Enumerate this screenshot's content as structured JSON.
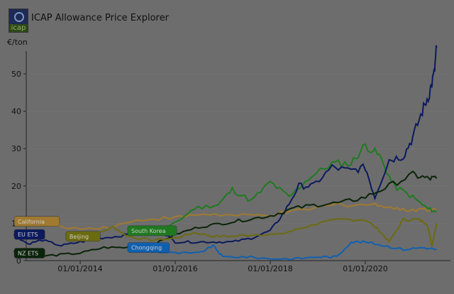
{
  "header": {
    "title": "ICAP Allowance Price Explorer",
    "logo_text": "icap"
  },
  "chart_data": {
    "type": "line",
    "title": "ICAP Allowance Price Explorer",
    "ylabel": "€/ton",
    "xlabel": "",
    "ylim": [
      0,
      57
    ],
    "xlim": [
      2012.6,
      2021.5
    ],
    "yticks": [
      "0",
      "10",
      "20",
      "30",
      "40",
      "50"
    ],
    "xticks": [
      {
        "t": 2014,
        "label": "01/01/2014"
      },
      {
        "t": 2016,
        "label": "01/01/2016"
      },
      {
        "t": 2018,
        "label": "01/01/2018"
      },
      {
        "t": 2020,
        "label": "01/01/2020"
      }
    ],
    "series": [
      {
        "name": "California",
        "color": "#a07a30",
        "x": [
          2012.6,
          2013.3,
          2014,
          2014.6,
          2015.3,
          2016,
          2016.6,
          2017.3,
          2018,
          2018.7,
          2019.4,
          2020,
          2020.4,
          2020.8,
          2021.2,
          2021.5
        ],
        "y": [
          11,
          9.5,
          8.5,
          9,
          11,
          11.5,
          12.5,
          12,
          12.2,
          13.5,
          15,
          15,
          14.8,
          13.5,
          13.8,
          13.5
        ]
      },
      {
        "name": "South Korea",
        "color": "#1f7a1f",
        "x": [
          2015.2,
          2015.6,
          2016,
          2016.4,
          2016.9,
          2017.2,
          2017.6,
          2018,
          2018.4,
          2018.8,
          2019.3,
          2019.7,
          2020,
          2020.3,
          2020.6,
          2021,
          2021.3,
          2021.5
        ],
        "y": [
          8,
          7.5,
          10,
          14,
          15,
          19,
          16,
          21,
          17,
          22,
          26,
          26,
          31,
          28,
          20,
          17,
          14,
          13
        ]
      },
      {
        "name": "EU ETS",
        "color": "#0c1a5e",
        "x": [
          2012.6,
          2012.9,
          2013.2,
          2013.6,
          2014,
          2014.4,
          2014.8,
          2015.2,
          2015.7,
          2016,
          2016.4,
          2016.8,
          2017.2,
          2017.6,
          2018,
          2018.3,
          2018.6,
          2018.9,
          2019.3,
          2019.7,
          2020,
          2020.2,
          2020.5,
          2020.8,
          2021,
          2021.2,
          2021.35,
          2021.45,
          2021.5
        ],
        "y": [
          7,
          4.5,
          5.5,
          4,
          5,
          6,
          6.5,
          7.5,
          8,
          5,
          5,
          5,
          5,
          6,
          8,
          13,
          20,
          20,
          25,
          24,
          25,
          17,
          27,
          28,
          33,
          40,
          45,
          50,
          57
        ]
      },
      {
        "name": "NZ ETS",
        "color": "#0a240a",
        "x": [
          2012.6,
          2013,
          2013.5,
          2014,
          2014.5,
          2015,
          2015.5,
          2016,
          2016.5,
          2017,
          2017.5,
          2018,
          2018.5,
          2019,
          2019.5,
          2020,
          2020.5,
          2021,
          2021.3,
          2021.5
        ],
        "y": [
          2.5,
          1,
          1.5,
          2,
          3.5,
          3.5,
          4,
          7,
          9,
          10,
          11,
          12,
          14,
          15,
          15.5,
          17,
          20,
          23,
          22,
          22
        ]
      },
      {
        "name": "Beijing",
        "color": "#6b6b10",
        "x": [
          2013.9,
          2014.3,
          2014.7,
          2015,
          2015.5,
          2016,
          2016.4,
          2016.8,
          2017.2,
          2017.7,
          2018.2,
          2018.6,
          2019,
          2019.5,
          2020,
          2020.3,
          2020.5,
          2020.8,
          2021.1,
          2021.3,
          2021.4,
          2021.5
        ],
        "y": [
          6.5,
          7,
          9,
          6.5,
          5.5,
          6,
          7.5,
          6.5,
          6.5,
          7,
          7,
          8.5,
          10,
          11,
          11,
          8,
          5,
          11,
          11,
          10,
          4,
          10
        ]
      },
      {
        "name": "Chongqing",
        "color": "#1060b0",
        "x": [
          2015.1,
          2015.5,
          2016,
          2016.5,
          2016.8,
          2017,
          2017.5,
          2018,
          2018.5,
          2019,
          2019.4,
          2019.7,
          2020,
          2020.4,
          2020.8,
          2021.2,
          2021.5
        ],
        "y": [
          3,
          2.5,
          2,
          2,
          4,
          1,
          1,
          0.5,
          0.5,
          1,
          1,
          5,
          5,
          4,
          3,
          3.5,
          3
        ]
      }
    ],
    "legend_labels": [
      {
        "name": "California",
        "t": 2012.6,
        "v": 10.5
      },
      {
        "name": "EU ETS",
        "t": 2012.6,
        "v": 7
      },
      {
        "name": "Beijing",
        "t": 2013.7,
        "v": 6.5
      },
      {
        "name": "South Korea",
        "t": 2015.0,
        "v": 8
      },
      {
        "name": "Chongqing",
        "t": 2015.0,
        "v": 3.5
      },
      {
        "name": "NZ ETS",
        "t": 2012.6,
        "v": 2
      }
    ]
  }
}
